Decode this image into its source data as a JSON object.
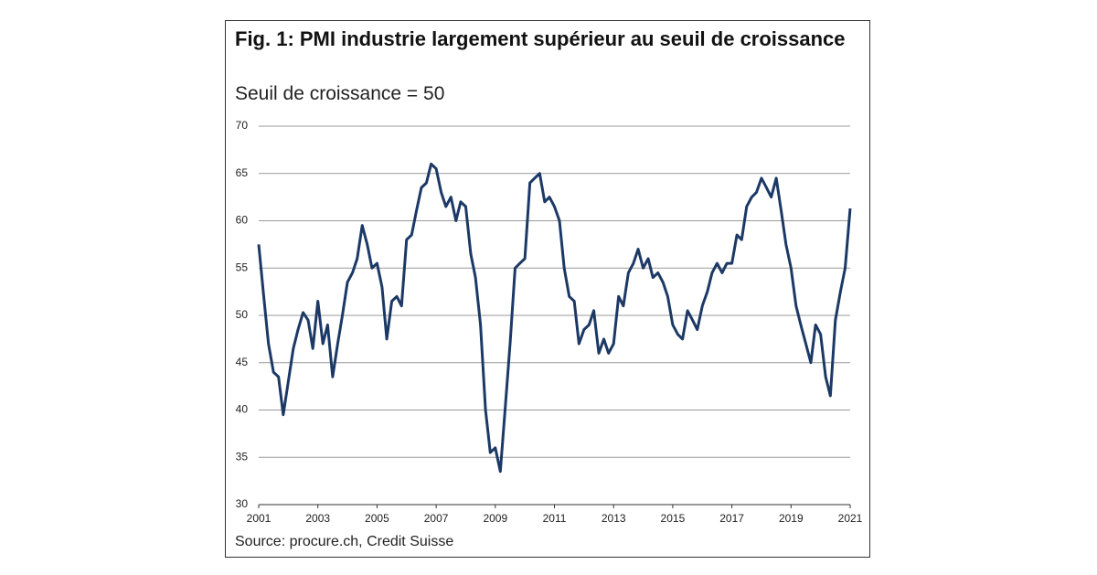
{
  "chart_data": {
    "type": "line",
    "title": "Fig. 1: PMI industrie largement supérieur au seuil de croissance",
    "subtitle": "Seuil de croissance = 50",
    "source": "Source: procure.ch, Credit Suisse",
    "x": [
      2001,
      2001.17,
      2001.33,
      2001.5,
      2001.67,
      2001.83,
      2002,
      2002.17,
      2002.33,
      2002.5,
      2002.67,
      2002.83,
      2003,
      2003.17,
      2003.33,
      2003.5,
      2003.67,
      2003.83,
      2004,
      2004.17,
      2004.33,
      2004.5,
      2004.67,
      2004.83,
      2005,
      2005.17,
      2005.33,
      2005.5,
      2005.67,
      2005.83,
      2006,
      2006.17,
      2006.33,
      2006.5,
      2006.67,
      2006.83,
      2007,
      2007.17,
      2007.33,
      2007.5,
      2007.67,
      2007.83,
      2008,
      2008.17,
      2008.33,
      2008.5,
      2008.67,
      2008.83,
      2009,
      2009.17,
      2009.33,
      2009.5,
      2009.67,
      2009.83,
      2010,
      2010.17,
      2010.33,
      2010.5,
      2010.67,
      2010.83,
      2011,
      2011.17,
      2011.33,
      2011.5,
      2011.67,
      2011.83,
      2012,
      2012.17,
      2012.33,
      2012.5,
      2012.67,
      2012.83,
      2013,
      2013.17,
      2013.33,
      2013.5,
      2013.67,
      2013.83,
      2014,
      2014.17,
      2014.33,
      2014.5,
      2014.67,
      2014.83,
      2015,
      2015.17,
      2015.33,
      2015.5,
      2015.67,
      2015.83,
      2016,
      2016.17,
      2016.33,
      2016.5,
      2016.67,
      2016.83,
      2017,
      2017.17,
      2017.33,
      2017.5,
      2017.67,
      2017.83,
      2018,
      2018.17,
      2018.33,
      2018.5,
      2018.67,
      2018.83,
      2019,
      2019.17,
      2019.33,
      2019.5,
      2019.67,
      2019.83,
      2020,
      2020.17,
      2020.33,
      2020.5,
      2020.67,
      2020.83,
      2021
    ],
    "series": [
      {
        "color": "#1c3966",
        "values": [
          57.5,
          52,
          47,
          44,
          43.5,
          39.5,
          43,
          46.5,
          48.5,
          50.3,
          49.5,
          46.5,
          51.5,
          47,
          49,
          43.5,
          47,
          50,
          53.5,
          54.5,
          56,
          59.5,
          57.5,
          55,
          55.5,
          53,
          47.5,
          51.5,
          52,
          51,
          58,
          58.5,
          61,
          63.5,
          64,
          66,
          65.5,
          63,
          61.5,
          62.5,
          60,
          62,
          61.5,
          56.5,
          54,
          49,
          40,
          35.5,
          36,
          33.5,
          40,
          47,
          55,
          55.5,
          56,
          64,
          64.5,
          65,
          62,
          62.5,
          61.5,
          60,
          55,
          52,
          51.5,
          47,
          48.5,
          49,
          50.5,
          46,
          47.5,
          46,
          47,
          52,
          51,
          54.5,
          55.5,
          57,
          55,
          56,
          54,
          54.5,
          53.5,
          52,
          49,
          48,
          47.5,
          50.5,
          49.5,
          48.5,
          51,
          52.5,
          54.5,
          55.5,
          54.5,
          55.5,
          55.5,
          58.5,
          58,
          61.5,
          62.5,
          63,
          64.5,
          63.5,
          62.5,
          64.5,
          61,
          57.5,
          55,
          51,
          49,
          47,
          45,
          49,
          48,
          43.5,
          41.5,
          49.5,
          52.5,
          55,
          61.3
        ]
      }
    ],
    "xlim": [
      2001,
      2021
    ],
    "xticks": [
      2001,
      2003,
      2005,
      2007,
      2009,
      2011,
      2013,
      2015,
      2017,
      2019,
      2021
    ],
    "ylim": [
      30,
      70
    ],
    "yticks": [
      30,
      35,
      40,
      45,
      50,
      55,
      60,
      65,
      70
    ],
    "grid": true
  }
}
